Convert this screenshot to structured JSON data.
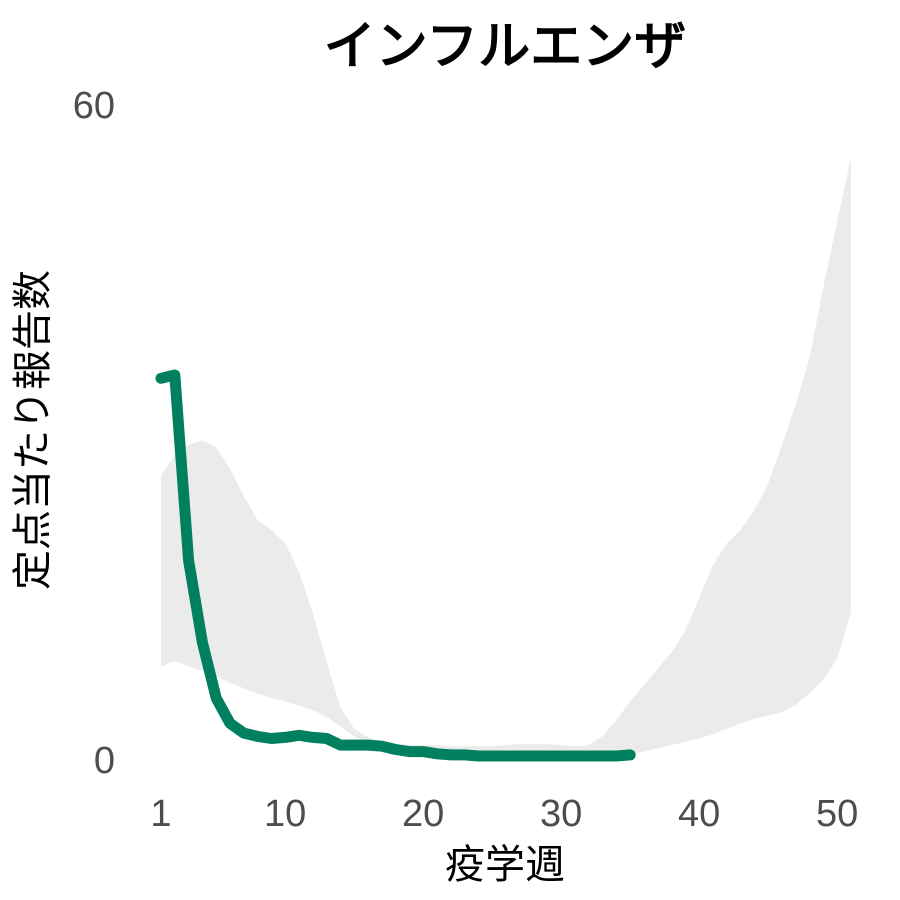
{
  "chart_data": {
    "type": "line",
    "title": "インフルエンザ",
    "xlabel": "疫学週",
    "ylabel": "定点当たり報告数",
    "xlim": [
      1,
      51
    ],
    "ylim": [
      0,
      60
    ],
    "x_ticks": [
      "1",
      "10",
      "20",
      "30",
      "40",
      "50"
    ],
    "y_ticks": [
      "0",
      "60"
    ],
    "grid": false,
    "legend": "none",
    "colors": {
      "line": "#00805f",
      "band": "#ebebeb",
      "tick_text": "#4d4d4d"
    },
    "band": {
      "name": "",
      "x": [
        1,
        2,
        3,
        4,
        5,
        6,
        7,
        8,
        9,
        10,
        11,
        12,
        13,
        14,
        15,
        16,
        17,
        18,
        19,
        20,
        21,
        22,
        23,
        24,
        25,
        26,
        27,
        28,
        29,
        30,
        31,
        32,
        33,
        34,
        35,
        36,
        37,
        38,
        39,
        40,
        41,
        42,
        43,
        44,
        45,
        46,
        47,
        48,
        49,
        50,
        51
      ],
      "lower": [
        8.2,
        8.7,
        8.2,
        7.8,
        7.3,
        6.7,
        6.2,
        5.7,
        5.3,
        5.0,
        4.6,
        4.2,
        3.6,
        2.7,
        1.8,
        1.1,
        0.7,
        0.5,
        0.4,
        0.3,
        0.2,
        0.2,
        0.1,
        0.1,
        0.1,
        0.1,
        0.1,
        0.1,
        0.1,
        0.1,
        0.1,
        0.1,
        0.1,
        0.1,
        0.2,
        0.4,
        0.7,
        1.0,
        1.3,
        1.6,
        2.0,
        2.5,
        3.0,
        3.4,
        3.7,
        4.0,
        4.7,
        5.7,
        7.0,
        8.9,
        13.2
      ],
      "upper": [
        25.7,
        27.5,
        28.5,
        28.9,
        28.3,
        26.3,
        23.8,
        21.6,
        20.7,
        19.5,
        16.9,
        13.1,
        8.6,
        4.5,
        2.5,
        1.7,
        1.3,
        1.1,
        1.0,
        1.0,
        1.0,
        0.9,
        0.9,
        0.9,
        0.9,
        1.0,
        1.1,
        1.1,
        1.1,
        1.0,
        0.9,
        1.0,
        1.8,
        3.3,
        5.0,
        6.5,
        8.0,
        9.5,
        11.5,
        14.5,
        17.5,
        19.5,
        20.7,
        22.5,
        25.0,
        28.5,
        32.2,
        36.5,
        43.0,
        49.0,
        54.8
      ]
    },
    "series": [
      {
        "name": "",
        "x": [
          1,
          2,
          3,
          4,
          5,
          6,
          7,
          8,
          9,
          10,
          11,
          12,
          13,
          14,
          15,
          16,
          17,
          18,
          19,
          20,
          21,
          22,
          23,
          24,
          25,
          26,
          27,
          28,
          29,
          30,
          31,
          32,
          33,
          34,
          35
        ],
        "values": [
          34.6,
          34.9,
          17.9,
          10.4,
          5.3,
          3.0,
          2.1,
          1.8,
          1.6,
          1.7,
          1.9,
          1.7,
          1.6,
          1.0,
          1.0,
          1.0,
          0.9,
          0.6,
          0.4,
          0.4,
          0.2,
          0.1,
          0.1,
          0.0,
          0.0,
          0.0,
          0.0,
          0.0,
          0.0,
          0.0,
          0.0,
          0.0,
          0.0,
          0.0,
          0.1
        ]
      }
    ]
  }
}
